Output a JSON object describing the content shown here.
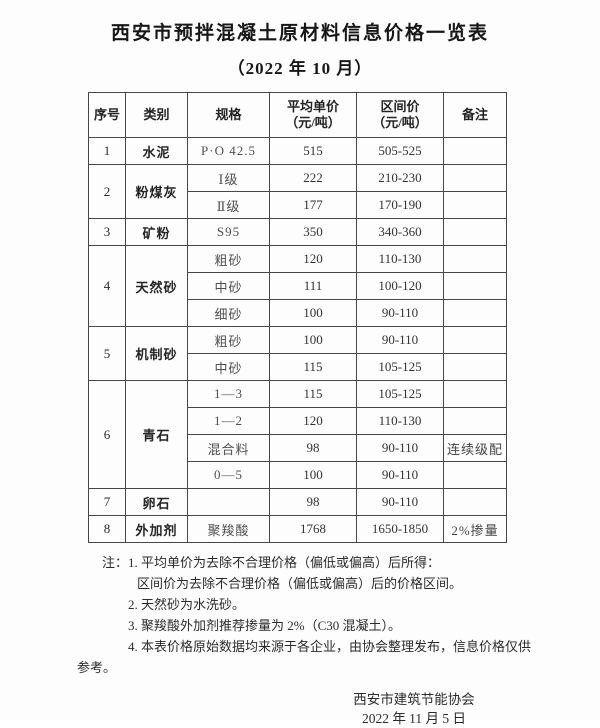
{
  "page": {
    "title": "西安市预拌混凝土原材料信息价格一览表",
    "subtitle": "（2022 年 10 月）"
  },
  "table": {
    "headers": {
      "no": "序号",
      "category": "类别",
      "spec": "规格",
      "avg_price": "平均单价",
      "range_price": "区间价",
      "price_unit": "（元/吨）",
      "remark": "备注"
    },
    "groups": [
      {
        "no": "1",
        "category": "水泥",
        "items": [
          {
            "spec": "P·O 42.5",
            "avg": "515",
            "range": "505-525",
            "remark": ""
          }
        ]
      },
      {
        "no": "2",
        "category": "粉煤灰",
        "items": [
          {
            "spec": "Ⅰ级",
            "avg": "222",
            "range": "210-230",
            "remark": ""
          },
          {
            "spec": "Ⅱ级",
            "avg": "177",
            "range": "170-190",
            "remark": ""
          }
        ]
      },
      {
        "no": "3",
        "category": "矿粉",
        "items": [
          {
            "spec": "S95",
            "avg": "350",
            "range": "340-360",
            "remark": ""
          }
        ]
      },
      {
        "no": "4",
        "category": "天然砂",
        "items": [
          {
            "spec": "粗砂",
            "avg": "120",
            "range": "110-130",
            "remark": ""
          },
          {
            "spec": "中砂",
            "avg": "111",
            "range": "100-120",
            "remark": ""
          },
          {
            "spec": "细砂",
            "avg": "100",
            "range": "90-110",
            "remark": ""
          }
        ]
      },
      {
        "no": "5",
        "category": "机制砂",
        "items": [
          {
            "spec": "粗砂",
            "avg": "100",
            "range": "90-110",
            "remark": ""
          },
          {
            "spec": "中砂",
            "avg": "115",
            "range": "105-125",
            "remark": ""
          }
        ]
      },
      {
        "no": "6",
        "category": "青石",
        "items": [
          {
            "spec": "1—3",
            "avg": "115",
            "range": "105-125",
            "remark": ""
          },
          {
            "spec": "1—2",
            "avg": "120",
            "range": "110-130",
            "remark": ""
          },
          {
            "spec": "混合料",
            "avg": "98",
            "range": "90-110",
            "remark": "连续级配"
          },
          {
            "spec": "0—5",
            "avg": "100",
            "range": "90-110",
            "remark": ""
          }
        ]
      },
      {
        "no": "7",
        "category": "卵石",
        "items": [
          {
            "spec": "",
            "avg": "98",
            "range": "90-110",
            "remark": ""
          }
        ]
      },
      {
        "no": "8",
        "category": "外加剂",
        "items": [
          {
            "spec": "聚羧酸",
            "avg": "1768",
            "range": "1650-1850",
            "remark": "2%掺量"
          }
        ]
      }
    ]
  },
  "notes": {
    "line1": "注：1. 平均单价为去除不合理价格（偏低或偏高）后所得：",
    "line2": "区间价为去除不合理价格（偏低或偏高）后的价格区间。",
    "line3": "2. 天然砂为水洗砂。",
    "line4": "3. 聚羧酸外加剂推荐掺量为 2%（C30 混凝土）。",
    "line5": "4. 本表价格原始数据均来源于各企业，由协会整理发布，信息价格仅供",
    "line6": "参考。"
  },
  "footer": {
    "org": "西安市建筑节能协会",
    "date": "2022 年 11 月 5 日"
  }
}
